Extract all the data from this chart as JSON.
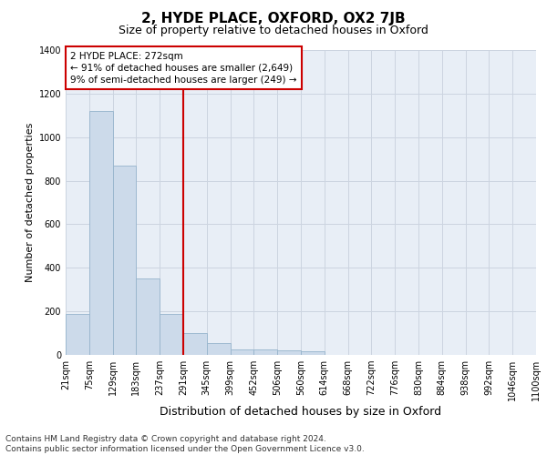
{
  "title": "2, HYDE PLACE, OXFORD, OX2 7JB",
  "subtitle": "Size of property relative to detached houses in Oxford",
  "xlabel": "Distribution of detached houses by size in Oxford",
  "ylabel": "Number of detached properties",
  "bar_values": [
    190,
    1120,
    870,
    350,
    190,
    100,
    55,
    25,
    25,
    20,
    15,
    0,
    0,
    0,
    0,
    0,
    0,
    0,
    0,
    0
  ],
  "bar_labels": [
    "21sqm",
    "75sqm",
    "129sqm",
    "183sqm",
    "237sqm",
    "291sqm",
    "345sqm",
    "399sqm",
    "452sqm",
    "506sqm",
    "560sqm",
    "614sqm",
    "668sqm",
    "722sqm",
    "776sqm",
    "830sqm",
    "884sqm",
    "938sqm",
    "992sqm",
    "1046sqm",
    "1100sqm"
  ],
  "bar_color": "#ccdaea",
  "bar_edge_color": "#96b4cc",
  "vline_color": "#cc0000",
  "annotation_text": "2 HYDE PLACE: 272sqm\n← 91% of detached houses are smaller (2,649)\n9% of semi-detached houses are larger (249) →",
  "annotation_box_color": "#cc0000",
  "ylim": [
    0,
    1400
  ],
  "yticks": [
    0,
    200,
    400,
    600,
    800,
    1000,
    1200,
    1400
  ],
  "grid_color": "#ccd4e0",
  "bg_color": "#e8eef6",
  "footer": "Contains HM Land Registry data © Crown copyright and database right 2024.\nContains public sector information licensed under the Open Government Licence v3.0.",
  "title_fontsize": 11,
  "subtitle_fontsize": 9,
  "xlabel_fontsize": 9,
  "ylabel_fontsize": 8,
  "tick_fontsize": 7,
  "annotation_fontsize": 7.5,
  "footer_fontsize": 6.5
}
